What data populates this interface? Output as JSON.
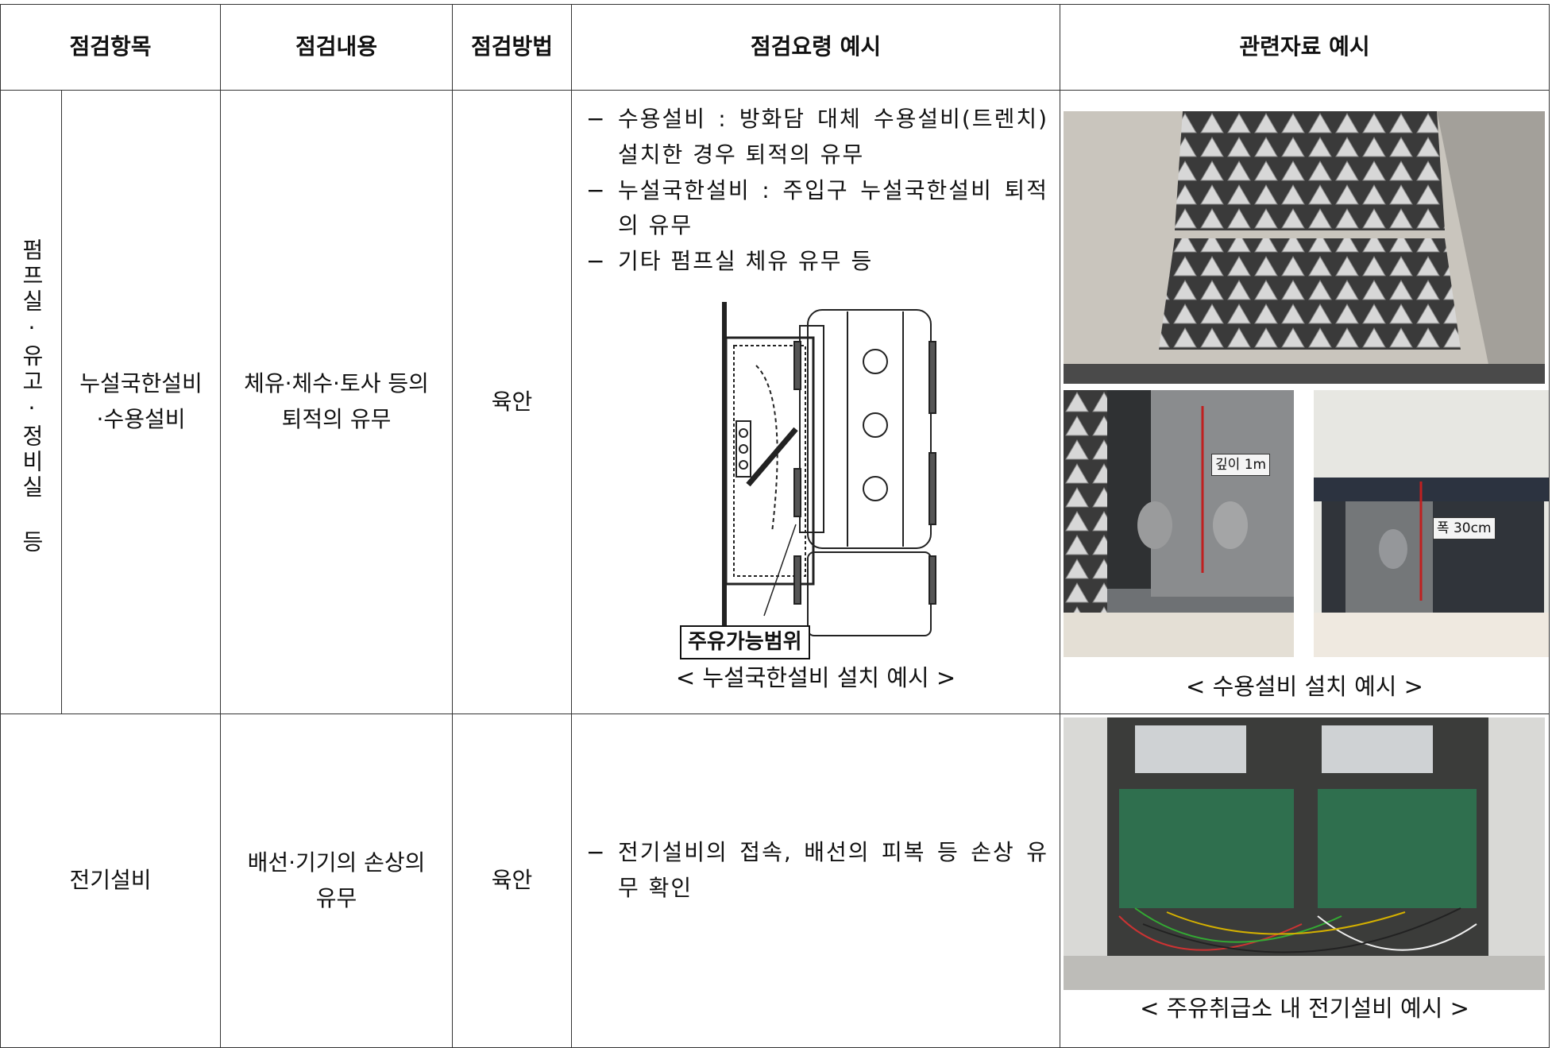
{
  "header": [
    "점검항목",
    "점검내용",
    "점검방법",
    "점검요령 예시",
    "관련자료 예시"
  ],
  "rows": [
    {
      "group": "펌프실·유고·정비실 등",
      "item": [
        "누설국한설비",
        "·수용설비"
      ],
      "content": [
        "체유·체수·토사 등의",
        "퇴적의 유무"
      ],
      "method": "육안",
      "guide": [
        "수용설비 : 방화담 대체 수용설비(트렌치) 설치한 경우 퇴적의 유무",
        "누설국한설비 : 주입구 누설국한설비 퇴적의 유무",
        "기타 펌프실 체유 유무 등"
      ],
      "diagram_label": "주유가능범위",
      "diagram_caption": "< 누설국한설비 설치 예시 >",
      "photo_labels": [
        "깊이 1m",
        "폭 30cm"
      ],
      "photo_caption": "< 수용설비 설치 예시 >"
    },
    {
      "item": [
        "전기설비"
      ],
      "content": [
        "배선·기기의 손상의",
        "유무"
      ],
      "method": "육안",
      "guide": [
        "전기설비의 접속, 배선의 피복 등 손상 유무 확인"
      ],
      "photo_caption": "< 주유취급소 내 전기설비 예시 >"
    }
  ]
}
